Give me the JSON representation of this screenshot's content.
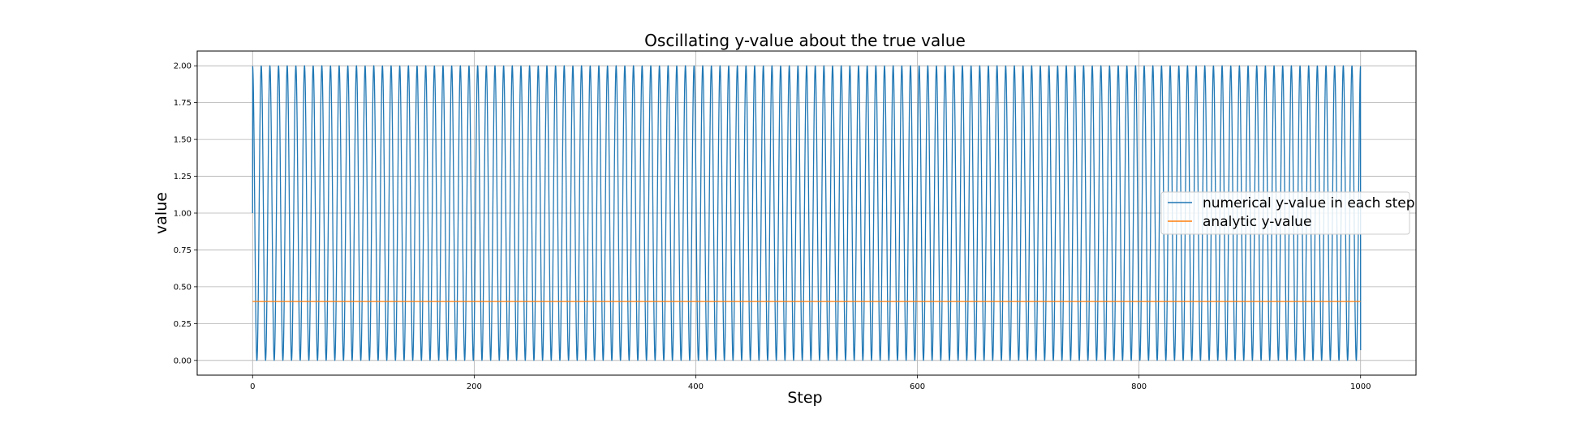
{
  "chart_data": {
    "type": "line",
    "title": "Oscillating y-value about the true value",
    "xlabel": "Step",
    "ylabel": "value",
    "xlim": [
      -50,
      1050
    ],
    "ylim": [
      -0.1,
      2.1
    ],
    "xticks": [
      0,
      200,
      400,
      600,
      800,
      1000
    ],
    "xtick_labels": [
      "0",
      "200",
      "400",
      "600",
      "800",
      "1000"
    ],
    "yticks": [
      0.0,
      0.25,
      0.5,
      0.75,
      1.0,
      1.25,
      1.5,
      1.75,
      2.0
    ],
    "ytick_labels": [
      "0.00",
      "0.25",
      "0.50",
      "0.75",
      "1.00",
      "1.25",
      "1.50",
      "1.75",
      "2.00"
    ],
    "grid": true,
    "legend_position": "center-right",
    "series": [
      {
        "name": "numerical y-value in each step",
        "color": "#1f77b4",
        "kind": "oscillation",
        "start_x": 0,
        "end_x": 1000,
        "start_value": 1.0,
        "end_value": 0.07,
        "min": 0.0,
        "max": 2.0,
        "cycles": 128
      },
      {
        "name": "analytic y-value",
        "color": "#ff7f0e",
        "kind": "constant",
        "x": [
          0,
          1000
        ],
        "values": [
          0.4,
          0.4
        ]
      }
    ]
  }
}
